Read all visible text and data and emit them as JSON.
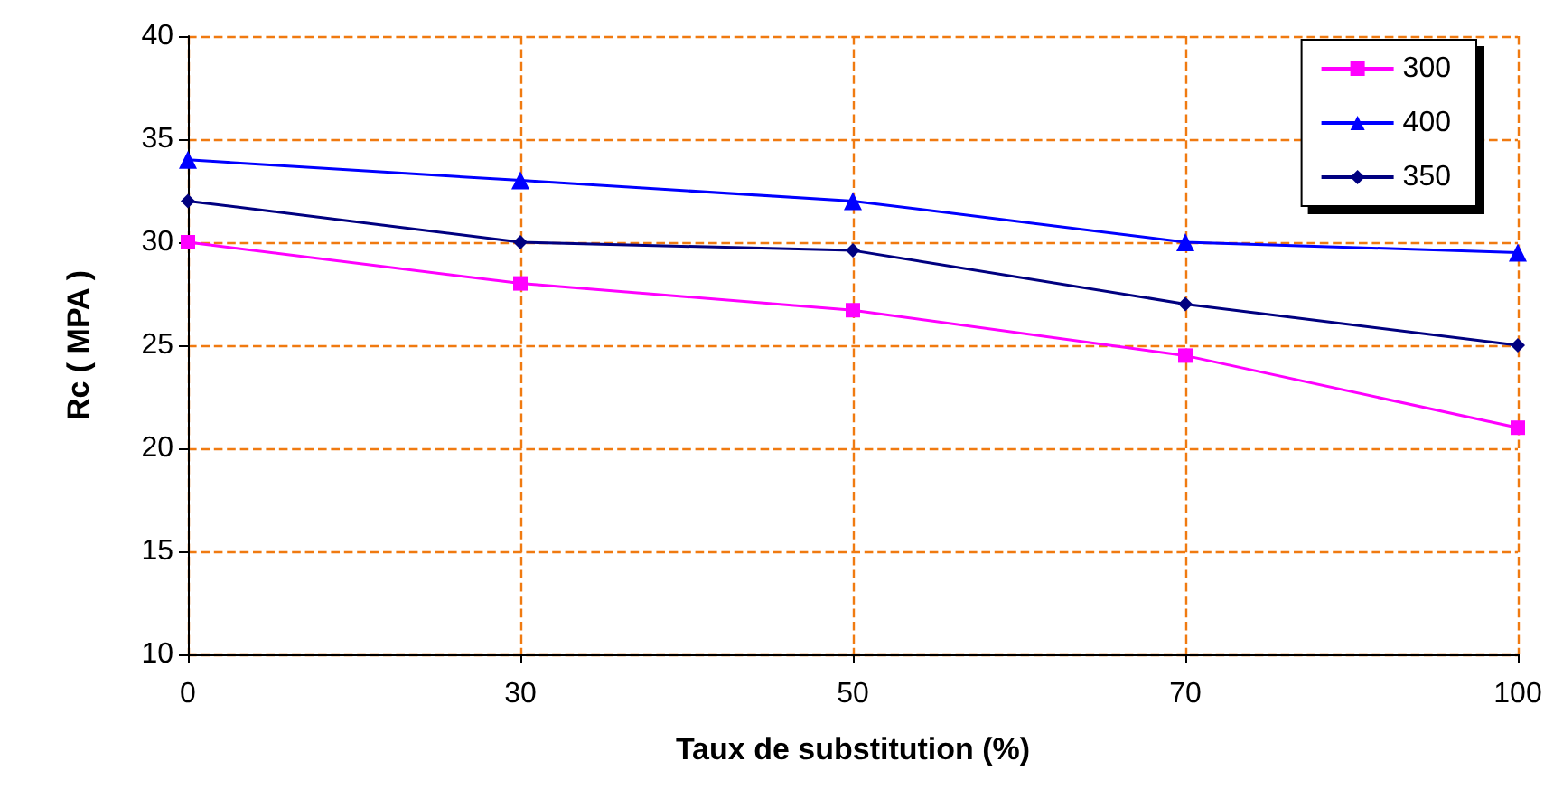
{
  "chart_data": {
    "type": "line",
    "xlabel": "Taux de substitution (%)",
    "ylabel": "Rc ( MPA )",
    "categories": [
      "0",
      "30",
      "50",
      "70",
      "100"
    ],
    "series": [
      {
        "name": "300",
        "color": "#ff00ff",
        "marker": "square",
        "values": [
          30,
          28,
          26.7,
          24.5,
          21
        ]
      },
      {
        "name": "400",
        "color": "#0000ff",
        "marker": "triangle",
        "values": [
          34,
          33,
          32,
          30,
          29.5
        ]
      },
      {
        "name": "350",
        "color": "#000080",
        "marker": "diamond",
        "values": [
          32,
          30,
          29.6,
          27,
          25
        ]
      }
    ],
    "ylim": [
      10,
      40
    ],
    "yticks": [
      10,
      15,
      20,
      25,
      30,
      35,
      40
    ],
    "grid": true,
    "legend": "top right",
    "line_style": "solid"
  }
}
